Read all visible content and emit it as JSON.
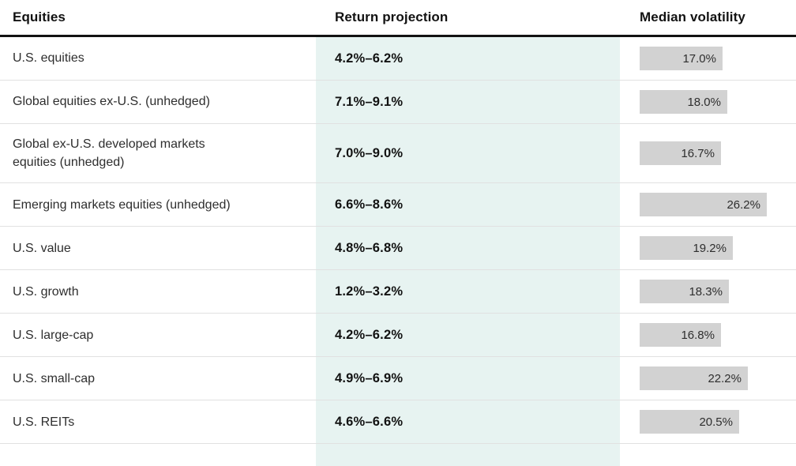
{
  "table": {
    "columns": [
      {
        "label": "Equities"
      },
      {
        "label": "Return projection"
      },
      {
        "label": "Median volatility"
      }
    ],
    "rows": [
      {
        "name": "U.S. equities",
        "return_projection": "4.2%–6.2%",
        "median_volatility_label": "17.0%",
        "median_volatility_value": 17.0
      },
      {
        "name": "Global equities ex-U.S. (unhedged)",
        "return_projection": "7.1%–9.1%",
        "median_volatility_label": "18.0%",
        "median_volatility_value": 18.0
      },
      {
        "name": "Global ex-U.S. developed markets equities (unhedged)",
        "return_projection": "7.0%–9.0%",
        "median_volatility_label": "16.7%",
        "median_volatility_value": 16.7
      },
      {
        "name": "Emerging markets equities (unhedged)",
        "return_projection": "6.6%–8.6%",
        "median_volatility_label": "26.2%",
        "median_volatility_value": 26.2
      },
      {
        "name": "U.S. value",
        "return_projection": "4.8%–6.8%",
        "median_volatility_label": "19.2%",
        "median_volatility_value": 19.2
      },
      {
        "name": "U.S. growth",
        "return_projection": "1.2%–3.2%",
        "median_volatility_label": "18.3%",
        "median_volatility_value": 18.3
      },
      {
        "name": "U.S. large-cap",
        "return_projection": "4.2%–6.2%",
        "median_volatility_label": "16.8%",
        "median_volatility_value": 16.8
      },
      {
        "name": "U.S. small-cap",
        "return_projection": "4.9%–6.9%",
        "median_volatility_label": "22.2%",
        "median_volatility_value": 22.2
      },
      {
        "name": "U.S. REITs",
        "return_projection": "4.6%–6.6%",
        "median_volatility_label": "20.5%",
        "median_volatility_value": 20.5
      }
    ]
  },
  "chart_data": {
    "type": "table",
    "title": "",
    "columns": [
      "Equities",
      "Return projection",
      "Median volatility"
    ],
    "rows": [
      [
        "U.S. equities",
        "4.2%–6.2%",
        17.0
      ],
      [
        "Global equities ex-U.S. (unhedged)",
        "7.1%–9.1%",
        18.0
      ],
      [
        "Global ex-U.S. developed markets equities (unhedged)",
        "7.0%–9.0%",
        16.7
      ],
      [
        "Emerging markets equities (unhedged)",
        "6.6%–8.6%",
        26.2
      ],
      [
        "U.S. value",
        "4.8%–6.8%",
        19.2
      ],
      [
        "U.S. growth",
        "1.2%–3.2%",
        18.3
      ],
      [
        "U.S. large-cap",
        "4.2%–6.2%",
        16.8
      ],
      [
        "U.S. small-cap",
        "4.9%–6.9%",
        22.2
      ],
      [
        "U.S. REITs",
        "4.6%–6.6%",
        20.5
      ]
    ],
    "bar_column": "Median volatility",
    "bar_values_unit": "%",
    "bar_axis_max_shown": 26.2
  },
  "colors": {
    "return_projection_band": "#e7f3f1",
    "volatility_bar": "#d2d2d2",
    "row_divider": "#e1e1e1",
    "header_rule": "#121212",
    "body_text": "#2e2e2e",
    "header_text": "#121212"
  }
}
